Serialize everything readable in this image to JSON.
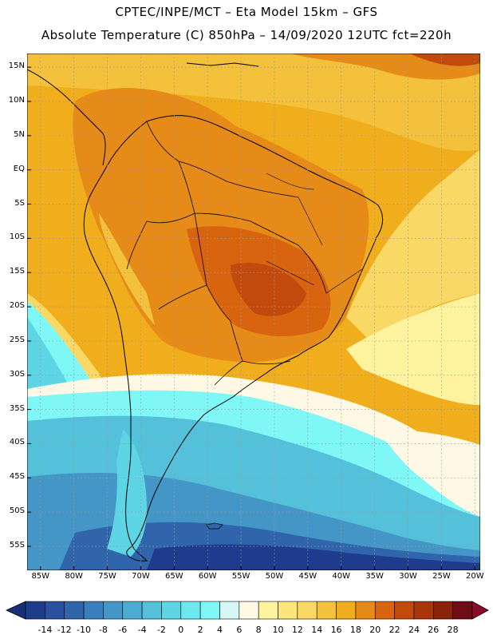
{
  "header": {
    "line1": "CPTEC/INPE/MCT –  Eta Model 15km – GFS",
    "line2": "Absolute Temperature (C) 850hPa – 14/09/2020 12UTC fct=220h"
  },
  "map": {
    "lat_labels": [
      "15N",
      "10N",
      "5N",
      "EQ",
      "5S",
      "10S",
      "15S",
      "20S",
      "25S",
      "30S",
      "35S",
      "40S",
      "45S",
      "50S",
      "55S"
    ],
    "lon_labels": [
      "85W",
      "80W",
      "75W",
      "70W",
      "65W",
      "60W",
      "55W",
      "50W",
      "45W",
      "40W",
      "35W",
      "30W",
      "25W",
      "20W"
    ],
    "lat_values": [
      15,
      10,
      5,
      0,
      -5,
      -10,
      -15,
      -20,
      -25,
      -30,
      -35,
      -40,
      -45,
      -50,
      -55
    ],
    "lon_values": [
      -85,
      -80,
      -75,
      -70,
      -65,
      -60,
      -55,
      -50,
      -45,
      -40,
      -35,
      -30,
      -25,
      -20
    ]
  },
  "colorbar": {
    "labels": [
      "-14",
      "-12",
      "-10",
      "-8",
      "-6",
      "-4",
      "-2",
      "0",
      "2",
      "4",
      "6",
      "8",
      "10",
      "12",
      "14",
      "16",
      "18",
      "20",
      "22",
      "24",
      "26",
      "28"
    ],
    "colors": [
      "#1f3b8c",
      "#2a4f9e",
      "#3065ac",
      "#3a7fbd",
      "#4496c7",
      "#4cabd0",
      "#55c0da",
      "#5dd5e4",
      "#6ee8ef",
      "#7ff7f7",
      "#d7f7f7",
      "#fff8e4",
      "#fff39f",
      "#fde57a",
      "#fad866",
      "#f4c13c",
      "#f0ad1c",
      "#e68a18",
      "#d86410",
      "#c24a0c",
      "#a8350c",
      "#8a220c",
      "#700c14"
    ],
    "under_color": "#1a2f7a",
    "over_color": "#8c0a2c"
  }
}
